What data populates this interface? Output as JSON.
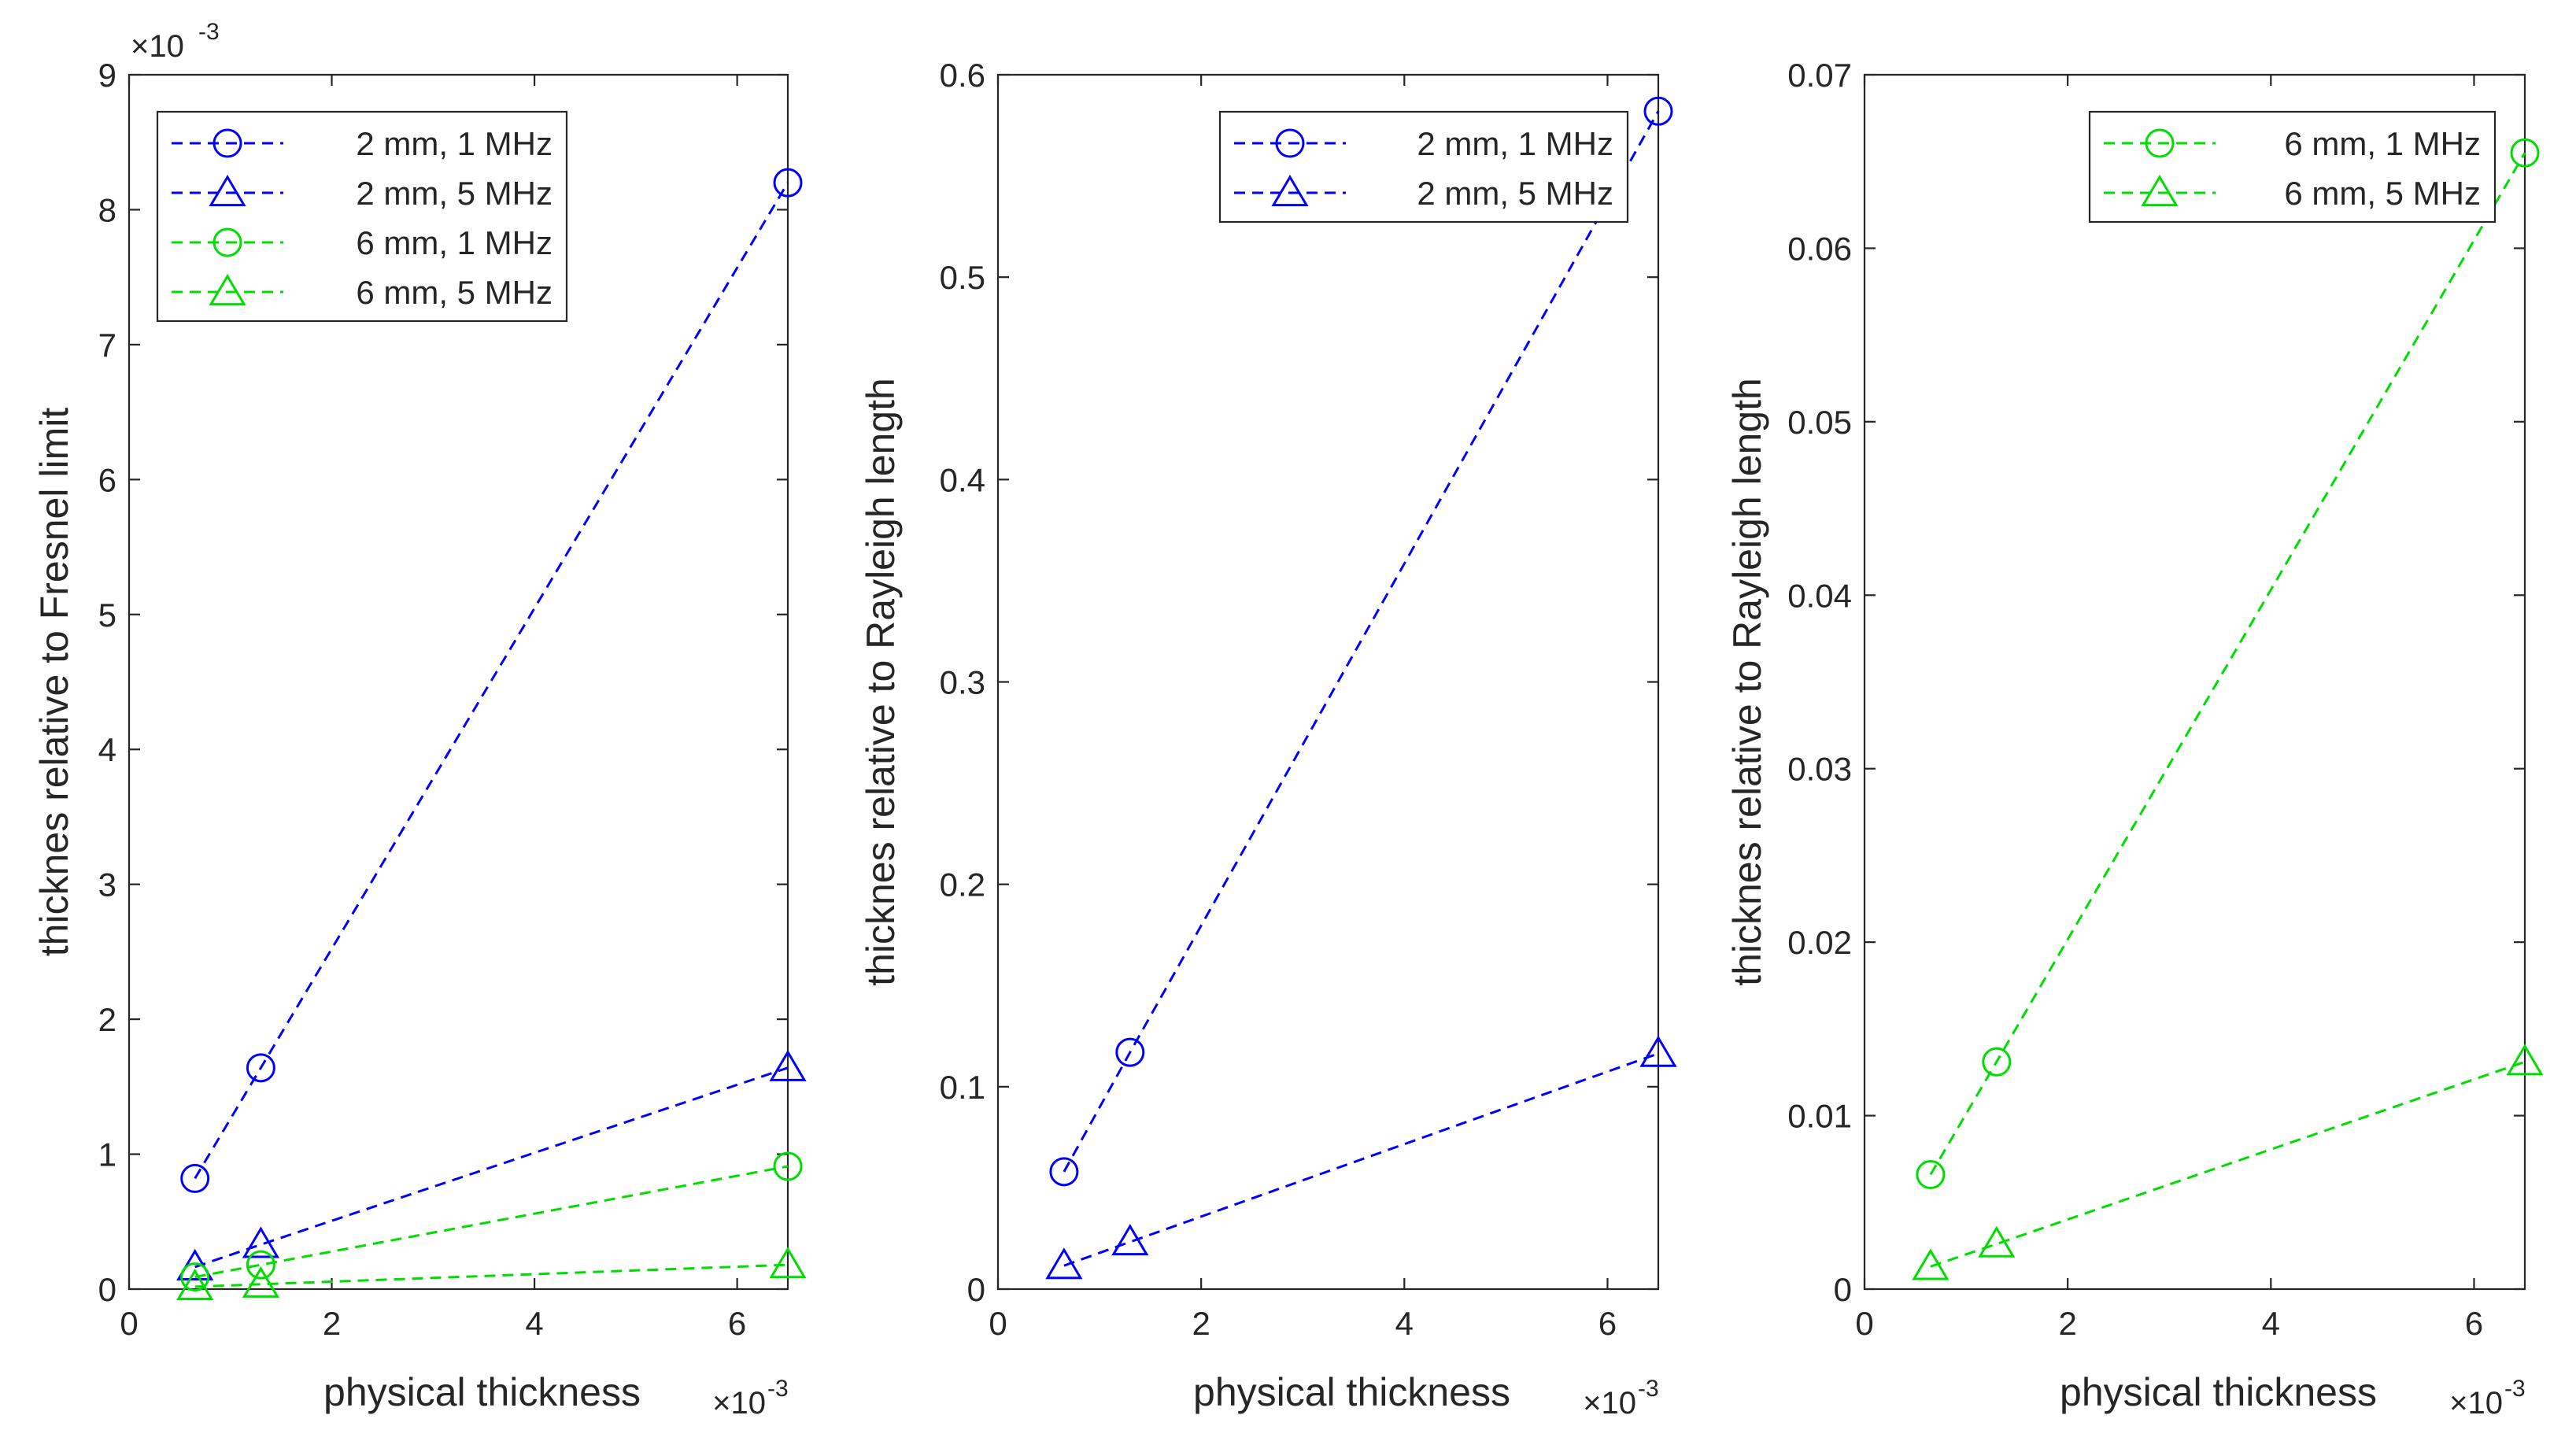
{
  "chart_data": [
    {
      "type": "line",
      "xlabel": "physical thickness",
      "ylabel": "thicknes relative to Fresnel limit",
      "x_multiplier": "×10",
      "x_multiplier_exp": "-3",
      "y_multiplier": "×10",
      "y_multiplier_exp": "-3",
      "xlim": [
        0,
        6.5
      ],
      "ylim": [
        0,
        9
      ],
      "xticks": [
        "0",
        "2",
        "4",
        "6"
      ],
      "xtick_values": [
        0,
        2,
        4,
        6
      ],
      "yticks": [
        "0",
        "1",
        "2",
        "3",
        "4",
        "5",
        "6",
        "7",
        "8",
        "9"
      ],
      "ytick_values": [
        0,
        1,
        2,
        3,
        4,
        5,
        6,
        7,
        8,
        9
      ],
      "legend_position": "top-left",
      "series": [
        {
          "name": "2 mm, 1 MHz",
          "color": "#0000ff",
          "marker": "circle",
          "x": [
            0.65,
            1.3,
            6.5
          ],
          "y": [
            0.82,
            1.64,
            8.2
          ]
        },
        {
          "name": "2 mm, 5 MHz",
          "color": "#0000ff",
          "marker": "triangle",
          "x": [
            0.65,
            1.3,
            6.5
          ],
          "y": [
            0.164,
            0.33,
            1.64
          ]
        },
        {
          "name": "6 mm, 1 MHz",
          "color": "#00dd00",
          "marker": "circle",
          "x": [
            0.65,
            1.3,
            6.5
          ],
          "y": [
            0.09,
            0.18,
            0.91
          ]
        },
        {
          "name": "6 mm, 5 MHz",
          "color": "#00dd00",
          "marker": "triangle",
          "x": [
            0.65,
            1.3,
            6.5
          ],
          "y": [
            0.018,
            0.036,
            0.18
          ]
        }
      ]
    },
    {
      "type": "line",
      "xlabel": "physical thickness",
      "ylabel": "thicknes relative to Rayleigh length",
      "x_multiplier": "×10",
      "x_multiplier_exp": "-3",
      "xlim": [
        0,
        6.5
      ],
      "ylim": [
        0,
        0.6
      ],
      "xticks": [
        "0",
        "2",
        "4",
        "6"
      ],
      "xtick_values": [
        0,
        2,
        4,
        6
      ],
      "yticks": [
        "0",
        "0.1",
        "0.2",
        "0.3",
        "0.4",
        "0.5",
        "0.6"
      ],
      "ytick_values": [
        0,
        0.1,
        0.2,
        0.3,
        0.4,
        0.5,
        0.6
      ],
      "legend_position": "top-right",
      "series": [
        {
          "name": "2 mm, 1 MHz",
          "color": "#0000ff",
          "marker": "circle",
          "x": [
            0.65,
            1.3,
            6.5
          ],
          "y": [
            0.058,
            0.117,
            0.582
          ]
        },
        {
          "name": "2 mm, 5 MHz",
          "color": "#0000ff",
          "marker": "triangle",
          "x": [
            0.65,
            1.3,
            6.5
          ],
          "y": [
            0.0116,
            0.0233,
            0.1164
          ]
        }
      ]
    },
    {
      "type": "line",
      "xlabel": "physical thickness",
      "ylabel": "thicknes relative to Rayleigh length",
      "x_multiplier": "×10",
      "x_multiplier_exp": "-3",
      "xlim": [
        0,
        6.5
      ],
      "ylim": [
        0,
        0.07
      ],
      "xticks": [
        "0",
        "2",
        "4",
        "6"
      ],
      "xtick_values": [
        0,
        2,
        4,
        6
      ],
      "yticks": [
        "0",
        "0.01",
        "0.02",
        "0.03",
        "0.04",
        "0.05",
        "0.06",
        "0.07"
      ],
      "ytick_values": [
        0,
        0.01,
        0.02,
        0.03,
        0.04,
        0.05,
        0.06,
        0.07
      ],
      "legend_position": "top-right",
      "series": [
        {
          "name": "6 mm, 1 MHz",
          "color": "#00dd00",
          "marker": "circle",
          "x": [
            0.65,
            1.3,
            6.5
          ],
          "y": [
            0.0066,
            0.0131,
            0.0655
          ]
        },
        {
          "name": "6 mm, 5 MHz",
          "color": "#00dd00",
          "marker": "triangle",
          "x": [
            0.65,
            1.3,
            6.5
          ],
          "y": [
            0.0013,
            0.0026,
            0.0131
          ]
        }
      ]
    }
  ]
}
